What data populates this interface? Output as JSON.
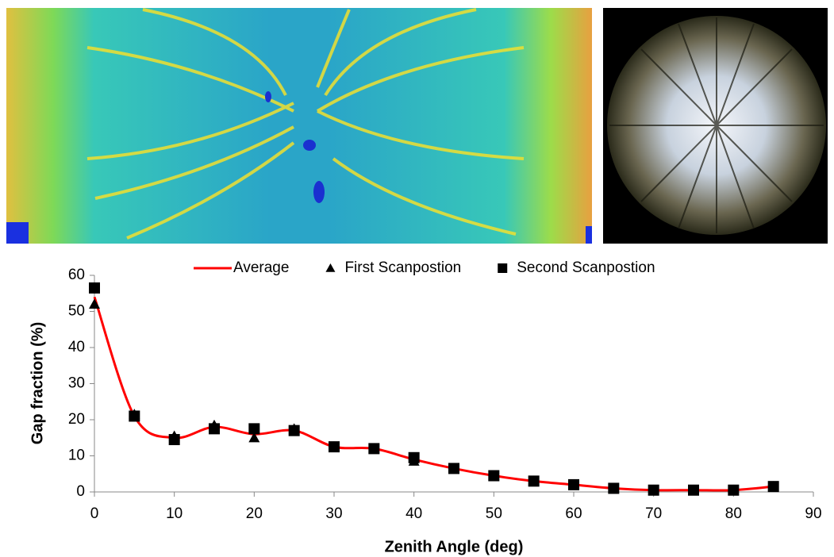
{
  "chart_data": {
    "type": "line",
    "x_label": "Zenith Angle (deg)",
    "y_label": "Gap fraction (%)",
    "x": [
      0,
      5,
      10,
      15,
      20,
      25,
      30,
      35,
      40,
      45,
      50,
      55,
      60,
      65,
      70,
      75,
      80,
      85
    ],
    "series": [
      {
        "name": "Average",
        "color": "#ff0000",
        "marker": "line",
        "values": [
          54,
          21,
          15,
          18,
          16,
          17,
          12.5,
          12,
          9,
          6.5,
          4.5,
          3,
          2,
          1,
          0.5,
          0.5,
          0.5,
          1.5
        ]
      },
      {
        "name": "First Scanpostion",
        "color": "#000000",
        "marker": "triangle",
        "values": [
          52,
          21.5,
          15.5,
          18.5,
          15,
          17.5,
          12.5,
          12,
          8.5,
          6.5,
          4.5,
          3,
          2,
          1,
          0.5,
          0.5,
          0.5,
          1.5
        ]
      },
      {
        "name": "Second Scanpostion",
        "color": "#000000",
        "marker": "square",
        "values": [
          56.5,
          21,
          14.5,
          17.5,
          17.5,
          17,
          12.5,
          12,
          9.5,
          6.5,
          4.5,
          3,
          2,
          1,
          0.5,
          0.5,
          0.5,
          1.5
        ]
      }
    ],
    "xlim": [
      0,
      90
    ],
    "xticks": [
      0,
      10,
      20,
      30,
      40,
      50,
      60,
      70,
      80,
      90
    ],
    "ylim": [
      0,
      60
    ],
    "yticks": [
      0,
      10,
      20,
      30,
      40,
      50,
      60
    ],
    "grid": false,
    "legend": "top"
  }
}
